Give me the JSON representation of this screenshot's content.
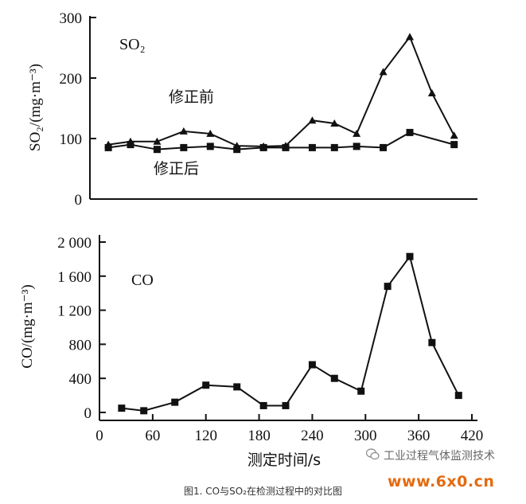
{
  "chart_data": [
    {
      "type": "line",
      "panel_label": "SO₂",
      "ylabel": "SO₂/(mg·m⁻³)",
      "ylim": [
        0,
        300
      ],
      "yticks": [
        "0",
        "100",
        "200",
        "300"
      ],
      "series": [
        {
          "name": "修正前",
          "marker": "triangle",
          "x": [
            10,
            35,
            65,
            95,
            125,
            155,
            185,
            210,
            240,
            265,
            290,
            320,
            350,
            375,
            400
          ],
          "y": [
            90,
            95,
            95,
            112,
            108,
            88,
            87,
            88,
            130,
            125,
            108,
            210,
            268,
            175,
            105
          ]
        },
        {
          "name": "修正后",
          "marker": "square",
          "x": [
            10,
            35,
            65,
            95,
            125,
            155,
            185,
            210,
            240,
            265,
            290,
            320,
            350,
            400
          ],
          "y": [
            85,
            90,
            82,
            85,
            87,
            82,
            85,
            85,
            85,
            85,
            87,
            85,
            110,
            90
          ]
        }
      ]
    },
    {
      "type": "line",
      "panel_label": "CO",
      "xlabel": "测定时间/s",
      "ylabel": "CO/(mg·m⁻³)",
      "xlim": [
        0,
        420
      ],
      "ylim": [
        0,
        2000
      ],
      "xticks": [
        "0",
        "60",
        "120",
        "180",
        "240",
        "300",
        "360",
        "420"
      ],
      "yticks": [
        "0",
        "400",
        "800",
        "1 200",
        "1 600",
        "2 000"
      ],
      "series": [
        {
          "marker": "square",
          "x": [
            25,
            50,
            85,
            120,
            155,
            185,
            210,
            240,
            265,
            295,
            325,
            350,
            375,
            405
          ],
          "y": [
            50,
            20,
            120,
            320,
            300,
            80,
            80,
            560,
            400,
            250,
            1480,
            1830,
            820,
            200
          ]
        }
      ]
    }
  ],
  "caption": "图1. CO与SO₂在检测过程中的对比图",
  "watermark": {
    "text": "工业过程气体监测技术",
    "site": "www.6x0.cn",
    "icon": "wechat-icon"
  },
  "colors": {
    "line": "#111111",
    "watermark_site": "#e46a10"
  }
}
